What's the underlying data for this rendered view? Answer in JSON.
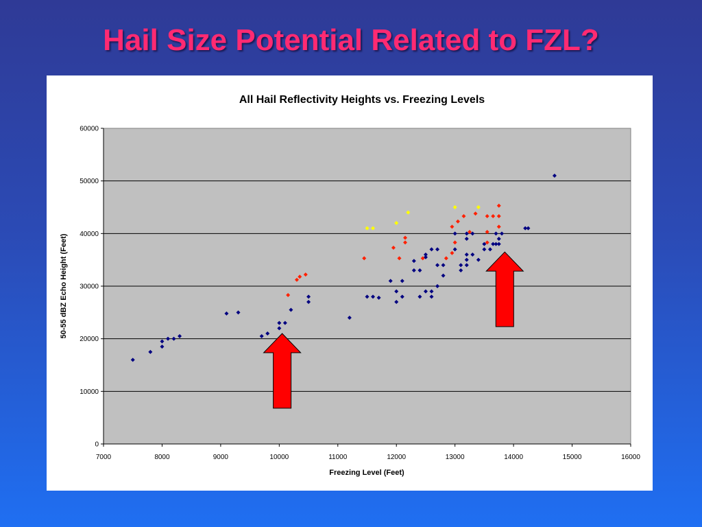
{
  "slide": {
    "title": "Hail Size Potential Related to FZL?"
  },
  "chart_data": {
    "type": "scatter",
    "title": "All Hail Reflectivity Heights vs. Freezing Levels",
    "xlabel": "Freezing Level (Feet)",
    "ylabel": "50-55 dBZ Echo Height (Feet)",
    "xlim": [
      7000,
      16000
    ],
    "ylim": [
      0,
      60000
    ],
    "x_ticks": [
      "7000",
      "8000",
      "9000",
      "10000",
      "11000",
      "12000",
      "13000",
      "14000",
      "15000",
      "16000"
    ],
    "y_ticks": [
      "0",
      "10000",
      "20000",
      "30000",
      "40000",
      "50000",
      "60000"
    ],
    "grid": "horizontal",
    "plot_background": "#c0c0c0",
    "series": [
      {
        "color": "#000080",
        "points": [
          [
            7500,
            16000
          ],
          [
            7800,
            17500
          ],
          [
            8000,
            18500
          ],
          [
            8000,
            19500
          ],
          [
            8100,
            20000
          ],
          [
            8200,
            20000
          ],
          [
            8300,
            20500
          ],
          [
            9100,
            24800
          ],
          [
            9300,
            25000
          ],
          [
            9700,
            20500
          ],
          [
            9800,
            21000
          ],
          [
            10000,
            22000
          ],
          [
            10000,
            23000
          ],
          [
            10100,
            23000
          ],
          [
            10200,
            25500
          ],
          [
            10500,
            27000
          ],
          [
            10500,
            28000
          ],
          [
            11200,
            24000
          ],
          [
            11500,
            28000
          ],
          [
            11600,
            28000
          ],
          [
            11700,
            27800
          ],
          [
            11900,
            31000
          ],
          [
            12000,
            29000
          ],
          [
            12000,
            27000
          ],
          [
            12100,
            28000
          ],
          [
            12100,
            31000
          ],
          [
            12300,
            33000
          ],
          [
            12300,
            34800
          ],
          [
            12400,
            33000
          ],
          [
            12400,
            28000
          ],
          [
            12500,
            29000
          ],
          [
            12500,
            35500
          ],
          [
            12500,
            36000
          ],
          [
            12600,
            28000
          ],
          [
            12600,
            29000
          ],
          [
            12600,
            37000
          ],
          [
            12700,
            30000
          ],
          [
            12700,
            34000
          ],
          [
            12700,
            37000
          ],
          [
            12800,
            32000
          ],
          [
            12800,
            34000
          ],
          [
            13000,
            37000
          ],
          [
            13000,
            40000
          ],
          [
            13100,
            33000
          ],
          [
            13100,
            34000
          ],
          [
            13200,
            34000
          ],
          [
            13200,
            35000
          ],
          [
            13200,
            36000
          ],
          [
            13200,
            39000
          ],
          [
            13200,
            40000
          ],
          [
            13300,
            36000
          ],
          [
            13300,
            40000
          ],
          [
            13400,
            35000
          ],
          [
            13500,
            37000
          ],
          [
            13500,
            38000
          ],
          [
            13600,
            37000
          ],
          [
            13650,
            38000
          ],
          [
            13700,
            38000
          ],
          [
            13700,
            40000
          ],
          [
            13750,
            38000
          ],
          [
            13750,
            39000
          ],
          [
            13800,
            40000
          ],
          [
            14200,
            41000
          ],
          [
            14250,
            41000
          ],
          [
            14700,
            51000
          ]
        ]
      },
      {
        "color": "#ff2000",
        "points": [
          [
            10150,
            28300
          ],
          [
            10300,
            31200
          ],
          [
            10350,
            31800
          ],
          [
            10450,
            32200
          ],
          [
            11450,
            35300
          ],
          [
            11950,
            37300
          ],
          [
            12050,
            35300
          ],
          [
            12150,
            38300
          ],
          [
            12150,
            39200
          ],
          [
            12450,
            35300
          ],
          [
            12850,
            35300
          ],
          [
            12950,
            36300
          ],
          [
            12950,
            41300
          ],
          [
            13000,
            38300
          ],
          [
            13050,
            42300
          ],
          [
            13150,
            43300
          ],
          [
            13250,
            40300
          ],
          [
            13350,
            43800
          ],
          [
            13550,
            38300
          ],
          [
            13550,
            40300
          ],
          [
            13550,
            43300
          ],
          [
            13650,
            43300
          ],
          [
            13750,
            41300
          ],
          [
            13750,
            43300
          ],
          [
            13750,
            45300
          ]
        ]
      },
      {
        "color": "#ffff00",
        "points": [
          [
            11500,
            41000
          ],
          [
            11600,
            41000
          ],
          [
            12000,
            42000
          ],
          [
            12200,
            44000
          ],
          [
            13000,
            45000
          ],
          [
            13400,
            45000
          ]
        ]
      }
    ],
    "annotations": [
      {
        "shape": "up-arrow",
        "color": "#ff0000",
        "x": 10050,
        "y_base": 6800,
        "y_tip": 21000
      },
      {
        "shape": "up-arrow",
        "color": "#ff0000",
        "x": 13850,
        "y_base": 22300,
        "y_tip": 36500
      }
    ]
  }
}
